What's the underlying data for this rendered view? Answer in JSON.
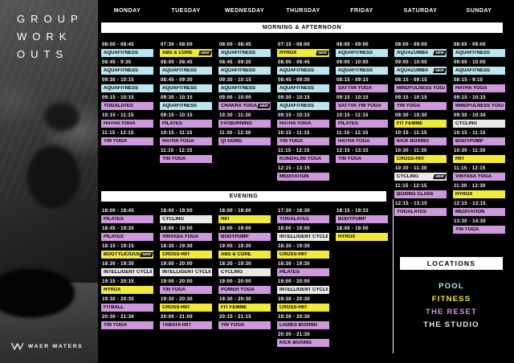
{
  "brand": {
    "title_lines": [
      "GROUP",
      "WORK",
      "OUTS"
    ],
    "logo_text": "WAER WATERS"
  },
  "labels": {
    "new_badge": "NEW"
  },
  "colors": {
    "pool": "#b9e6ef",
    "fitness": "#f2e93d",
    "reset": "#cf97dc",
    "studio": "#e9e9e9",
    "band_background": "#ffffff",
    "page_background": "#000000"
  },
  "days": [
    "MONDAY",
    "TUESDAY",
    "WEDNESDAY",
    "THURSDAY",
    "FRIDAY",
    "SATURDAY",
    "SUNDAY"
  ],
  "sections": {
    "morning_label": "MORNING & AFTERNOON",
    "evening_label": "EVENING"
  },
  "schedule": {
    "morning": [
      [
        {
          "time": "08:00 - 08:45",
          "name": "AQUAFITNESS",
          "loc": "pool"
        },
        {
          "time": "08:45 - 9:30",
          "name": "AQUAFITNESS",
          "loc": "pool"
        },
        {
          "time": "09:30 - 10:15",
          "name": "AQUAFITNESS",
          "loc": "pool"
        },
        {
          "time": "09:15 - 10:15",
          "name": "YOGALATES",
          "loc": "reset"
        },
        {
          "time": "10:15 - 11:15",
          "name": "HATHA YOGA",
          "loc": "reset"
        },
        {
          "time": "11:15 - 12:15",
          "name": "YIN YOGA",
          "loc": "reset"
        }
      ],
      [
        {
          "time": "07:30 - 08:00",
          "name": "ABS & CORE",
          "loc": "fitness",
          "is_new": true
        },
        {
          "time": "08:00 - 08:45",
          "name": "AQUAFITNESS",
          "loc": "pool"
        },
        {
          "time": "08:45 - 09:30",
          "name": "AQUAFITNESS",
          "loc": "pool"
        },
        {
          "time": "09:30 - 10:15",
          "name": "AQUAFITNESS",
          "loc": "pool"
        },
        {
          "time": "09:15 - 10:15",
          "name": "PILATES",
          "loc": "reset"
        },
        {
          "time": "10:15 - 11:15",
          "name": "HATHA YOGA",
          "loc": "reset"
        },
        {
          "time": "11:15 - 12:15",
          "name": "YIN YOGA",
          "loc": "reset"
        }
      ],
      [
        {
          "time": "08:00 - 08:45",
          "name": "AQUAFITNESS",
          "loc": "pool"
        },
        {
          "time": "08:45 - 09:30",
          "name": "AQUAFITNESS",
          "loc": "pool"
        },
        {
          "time": "09:30 - 10:15",
          "name": "AQUAFITNESS",
          "loc": "pool"
        },
        {
          "time": "09:00 - 10:00",
          "name": "CHAKRA YOGA",
          "loc": "reset",
          "is_new": true
        },
        {
          "time": "10:30 - 11:30",
          "name": "FATBURNING",
          "loc": "reset"
        },
        {
          "time": "11:30 - 12:30",
          "name": "QI GONG",
          "loc": "reset"
        }
      ],
      [
        {
          "time": "07:15 - 08:00",
          "name": "HYROX",
          "loc": "fitness",
          "is_new": true
        },
        {
          "time": "08:00 - 08:45",
          "name": "AQUAFITNESS",
          "loc": "pool"
        },
        {
          "time": "08:45 - 09:30",
          "name": "AQUAFITNESS",
          "loc": "pool"
        },
        {
          "time": "09:30 - 10:15",
          "name": "AQUAFITNESS",
          "loc": "pool"
        },
        {
          "time": "09:15 - 10:15",
          "name": "HATHA YOGA",
          "loc": "reset"
        },
        {
          "time": "10:15 - 11:15",
          "name": "YIN YOGA",
          "loc": "reset"
        },
        {
          "time": "11:15 - 12:15",
          "name": "KUNDALINI YOGA",
          "loc": "reset"
        },
        {
          "time": "12:15 - 13:15",
          "name": "MEDITATION",
          "loc": "reset"
        }
      ],
      [
        {
          "time": "08:00 - 09:00",
          "name": "AQUAFITNESS",
          "loc": "pool"
        },
        {
          "time": "09:00 - 10:00",
          "name": "AQUAFITNESS",
          "loc": "pool"
        },
        {
          "time": "08:15 - 09:15",
          "name": "SATTVA YOGA",
          "loc": "reset"
        },
        {
          "time": "09:15 - 10:15",
          "name": "SATTVA YIN YOGA",
          "loc": "reset"
        },
        {
          "time": "10:15 - 11:15",
          "name": "PILATES",
          "loc": "reset"
        },
        {
          "time": "11:15 - 12:15",
          "name": "HATHA YOGA",
          "loc": "reset"
        },
        {
          "time": "12:15 - 13:15",
          "name": "YIN YOGA",
          "loc": "reset"
        }
      ],
      [
        {
          "time": "08:00 - 09:00",
          "name": "AQUAZUMBA",
          "loc": "pool",
          "is_new": true
        },
        {
          "time": "09:00 - 10:00",
          "name": "AQUAZUMBA",
          "loc": "pool",
          "is_new": true
        },
        {
          "time": "08:15 - 09:15",
          "name": "MINDFULNESS YOGA",
          "loc": "reset"
        },
        {
          "time": "09:15 - 10:15",
          "name": "YIN YOGA",
          "loc": "reset"
        },
        {
          "time": "09:30 - 10:30",
          "name": "FIT FEMME",
          "loc": "fitness"
        },
        {
          "time": "10:15 - 11:15",
          "name": "KICK BOXING",
          "loc": "reset"
        },
        {
          "time": "10:30 - 11:30",
          "name": "CROSS-HIIT",
          "loc": "fitness"
        },
        {
          "time": "10:30 - 11:30",
          "name": "CYCLING",
          "loc": "studio",
          "is_new": true
        },
        {
          "time": "11:15 - 12:15",
          "name": "BOXING CLASS",
          "loc": "reset"
        },
        {
          "time": "12:15 - 13:15",
          "name": "YOGALATES",
          "loc": "reset"
        }
      ],
      [
        {
          "time": "08:00 - 09:00",
          "name": "AQUAFITNESS",
          "loc": "pool"
        },
        {
          "time": "09:00 - 10:00",
          "name": "AQUAFITNESS",
          "loc": "pool"
        },
        {
          "time": "08:15 - 9:15",
          "name": "HATHA YOGA",
          "loc": "reset"
        },
        {
          "time": "09:15 - 10:15",
          "name": "MINDFULNESS YOGA",
          "loc": "reset"
        },
        {
          "time": "09:30 - 10:30",
          "name": "CYCLING",
          "loc": "studio"
        },
        {
          "time": "10:15 - 11:15",
          "name": "BODYPUMP",
          "loc": "reset"
        },
        {
          "time": "10:30 - 11:30",
          "name": "HIIT",
          "loc": "fitness"
        },
        {
          "time": "11:15 - 12:15",
          "name": "VINYASA YOGA",
          "loc": "reset"
        },
        {
          "time": "11:30 - 12:30",
          "name": "HYROX",
          "loc": "fitness"
        },
        {
          "time": "12:15 - 13:15",
          "name": "MEDITATION",
          "loc": "reset"
        },
        {
          "time": "13:30 - 14:30",
          "name": "YIN YOGA",
          "loc": "reset"
        }
      ]
    ],
    "evening": [
      [
        {
          "time": "18:00 - 18:45",
          "name": "PILATES",
          "loc": "reset"
        },
        {
          "time": "18:45 - 19:30",
          "name": "PILATES",
          "loc": "reset"
        },
        {
          "time": "18:15 - 19:15",
          "name": "BOOTYLICIOUS",
          "loc": "fitness",
          "is_new": true
        },
        {
          "time": "18:30 - 19:30",
          "name": "INTELLIGENT CYCLING",
          "loc": "studio"
        },
        {
          "time": "19:15 - 20:15",
          "name": "HYROX",
          "loc": "fitness"
        },
        {
          "time": "19:30 - 20:30",
          "name": "FITBALL",
          "loc": "reset"
        },
        {
          "time": "20:30 - 21:30",
          "name": "YIN YOGA",
          "loc": "reset"
        }
      ],
      [
        {
          "time": "18:00 - 19:00",
          "name": "CYCLING",
          "loc": "studio"
        },
        {
          "time": "18:00 - 19:00",
          "name": "VINYASA YOGA",
          "loc": "reset"
        },
        {
          "time": "18:30 - 19:30",
          "name": "CROSS-HIIT",
          "loc": "fitness"
        },
        {
          "time": "19:00 - 20:00",
          "name": "INTELLIGENT CYCLING",
          "loc": "studio"
        },
        {
          "time": "19:00 - 20:00",
          "name": "YIN YOGA",
          "loc": "reset"
        },
        {
          "time": "19:30 - 20:30",
          "name": "CROSS-HIIT",
          "loc": "fitness"
        },
        {
          "time": "20:00 - 21:00",
          "name": "TABATA HIIT",
          "loc": "reset"
        }
      ],
      [
        {
          "time": "18:00 - 19:00",
          "name": "HIIT",
          "loc": "fitness"
        },
        {
          "time": "18:00 - 19:00",
          "name": "BODYPUMP",
          "loc": "reset"
        },
        {
          "time": "19:00 - 19:30",
          "name": "ABS & CORE",
          "loc": "fitness"
        },
        {
          "time": "18:30 - 19:30",
          "name": "CYCLING",
          "loc": "studio"
        },
        {
          "time": "19:00 - 20:00",
          "name": "POWER YOGA",
          "loc": "reset"
        },
        {
          "time": "19:30 - 20:30",
          "name": "FIT FEMME",
          "loc": "fitness"
        },
        {
          "time": "20:15 - 21:15",
          "name": "YIN YOGA",
          "loc": "reset"
        }
      ],
      [
        {
          "time": "17:30 - 18:30",
          "name": "YOGALATES",
          "loc": "reset"
        },
        {
          "time": "18:00 - 19:00",
          "name": "INTELLIGENT CYCLING",
          "loc": "studio"
        },
        {
          "time": "18:30 - 19:30",
          "name": "CROSS-HIIT",
          "loc": "fitness"
        },
        {
          "time": "18:30 - 19:30",
          "name": "PILATES",
          "loc": "reset"
        },
        {
          "time": "19:00 - 20:00",
          "name": "INTELLIGENT CYCLING",
          "loc": "studio"
        },
        {
          "time": "19:30 - 20:30",
          "name": "CROSS-HIIT",
          "loc": "fitness"
        },
        {
          "time": "19:30 - 20:30",
          "name": "LADIES BOXING",
          "loc": "reset"
        },
        {
          "time": "20:30 - 21:30",
          "name": "KICK BOXING",
          "loc": "reset"
        }
      ],
      [
        {
          "time": "18:15 - 19:15",
          "name": "BODYPUMP",
          "loc": "reset"
        },
        {
          "time": "18:00 - 19:00",
          "name": "HYROX",
          "loc": "fitness"
        }
      ]
    ]
  },
  "locations": {
    "title": "LOCATIONS",
    "items": [
      {
        "label": "POOL",
        "loc": "pool"
      },
      {
        "label": "FITNESS",
        "loc": "fitness"
      },
      {
        "label": "THE RESET",
        "loc": "reset"
      },
      {
        "label": "THE STUDIO",
        "loc": "studio"
      }
    ]
  }
}
